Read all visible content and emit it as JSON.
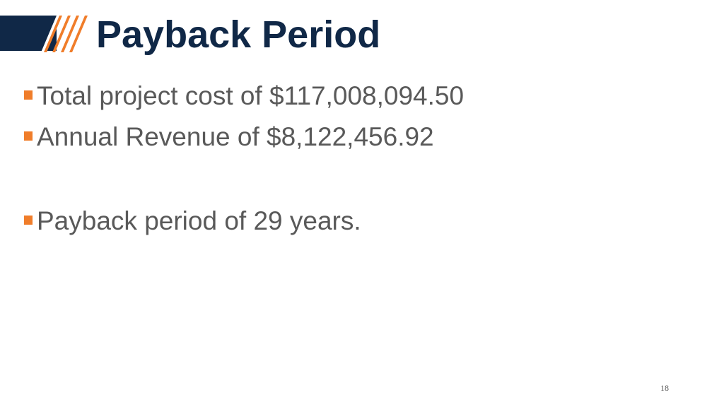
{
  "slide": {
    "title": "Payback Period",
    "bullets": [
      "Total project cost of $117,008,094.50",
      "Annual Revenue of $8,122,456.92",
      "Payback period of 29 years."
    ],
    "page_number": "18"
  },
  "colors": {
    "title_navy": "#102847",
    "accent_orange": "#f07d2a",
    "body_text": "#595959",
    "background": "#ffffff"
  }
}
